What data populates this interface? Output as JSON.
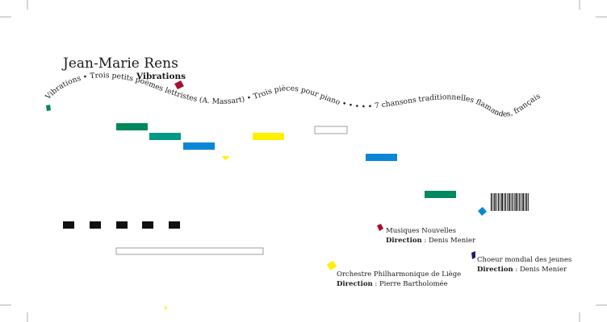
{
  "composer": "Jean-Marie Rens",
  "album_title": "Vibrations",
  "curved_text": "Vibrations • Trois petits poèmes lettristes (A. Massart) • Trois pièces pour piano • • • • • 7 chansons traditionnelles flamandes, françaises et wallonnes • Espace-temps",
  "performers": [
    {
      "name": "Musiques Nouvelles",
      "direction_label": "Direction",
      "director": "Denis Menier"
    },
    {
      "name": "Orchestre Philharmonique de Liège",
      "direction_label": "Direction",
      "director": "Pierre Bartholomée"
    },
    {
      "name": "Choeur mondial des jeunes",
      "direction_label": "Direction",
      "director": "Denis Menier"
    }
  ],
  "colors": {
    "green": "#00885e",
    "teal": "#009985",
    "blue": "#0a87d6",
    "yellow": "#fff000",
    "red": "#a8102e",
    "navy": "#1c1f6c",
    "black": "#111111",
    "crop_mark": "#888888"
  }
}
